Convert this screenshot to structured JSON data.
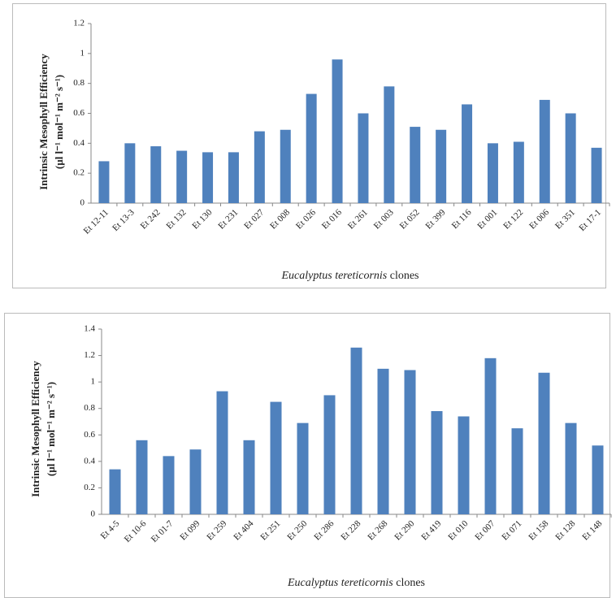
{
  "chart_data": [
    {
      "type": "bar",
      "ylabel": [
        "Intrinsic Mesophyll Efficiency",
        "(µl l⁻¹ mol⁻¹ m⁻² s⁻¹)"
      ],
      "xlabel": [
        "Eucalyptus tereticornis",
        "clones"
      ],
      "categories": [
        "Et 12-11",
        "Et 13-3",
        "Et 242",
        "Et 132",
        "Et 130",
        "Et 231",
        "Et 027",
        "Et 008",
        "Et 026",
        "Et 016",
        "Et 261",
        "Et 003",
        "Et 052",
        "Et 399",
        "Et 116",
        "Et 001",
        "Et 122",
        "Et 006",
        "Et 351",
        "Et 17-1"
      ],
      "values": [
        0.28,
        0.4,
        0.38,
        0.35,
        0.34,
        0.34,
        0.48,
        0.49,
        0.73,
        0.96,
        0.6,
        0.78,
        0.51,
        0.49,
        0.66,
        0.4,
        0.41,
        0.69,
        0.6,
        0.37
      ],
      "color": "#4f81bd",
      "ylim": [
        0,
        1.2
      ],
      "yticks": [
        0,
        0.2,
        0.4,
        0.6,
        0.8,
        1,
        1.2
      ]
    },
    {
      "type": "bar",
      "ylabel": [
        "Intrinsic Mesophyll Efficiency",
        "(µl l⁻¹ mol⁻¹ m⁻² s⁻¹)"
      ],
      "xlabel": [
        "Eucalyptus tereticornis",
        "clones"
      ],
      "categories": [
        "Et 4-5",
        "Et 10-6",
        "Et 01-7",
        "Et 099",
        "Et 259",
        "Et 404",
        "Et 251",
        "Et 250",
        "Et 286",
        "Et 228",
        "Et 268",
        "Et 290",
        "Et 419",
        "Et 010",
        "Et 007",
        "Et 071",
        "Et 158",
        "Et 128",
        "Et 148"
      ],
      "values": [
        0.34,
        0.56,
        0.44,
        0.49,
        0.93,
        0.56,
        0.85,
        0.69,
        0.9,
        1.26,
        1.1,
        1.09,
        0.78,
        0.74,
        1.18,
        0.65,
        1.07,
        0.69,
        0.52
      ],
      "color": "#4f81bd",
      "ylim": [
        0,
        1.4
      ],
      "yticks": [
        0,
        0.2,
        0.4,
        0.6,
        0.8,
        1,
        1.2,
        1.4
      ]
    }
  ]
}
